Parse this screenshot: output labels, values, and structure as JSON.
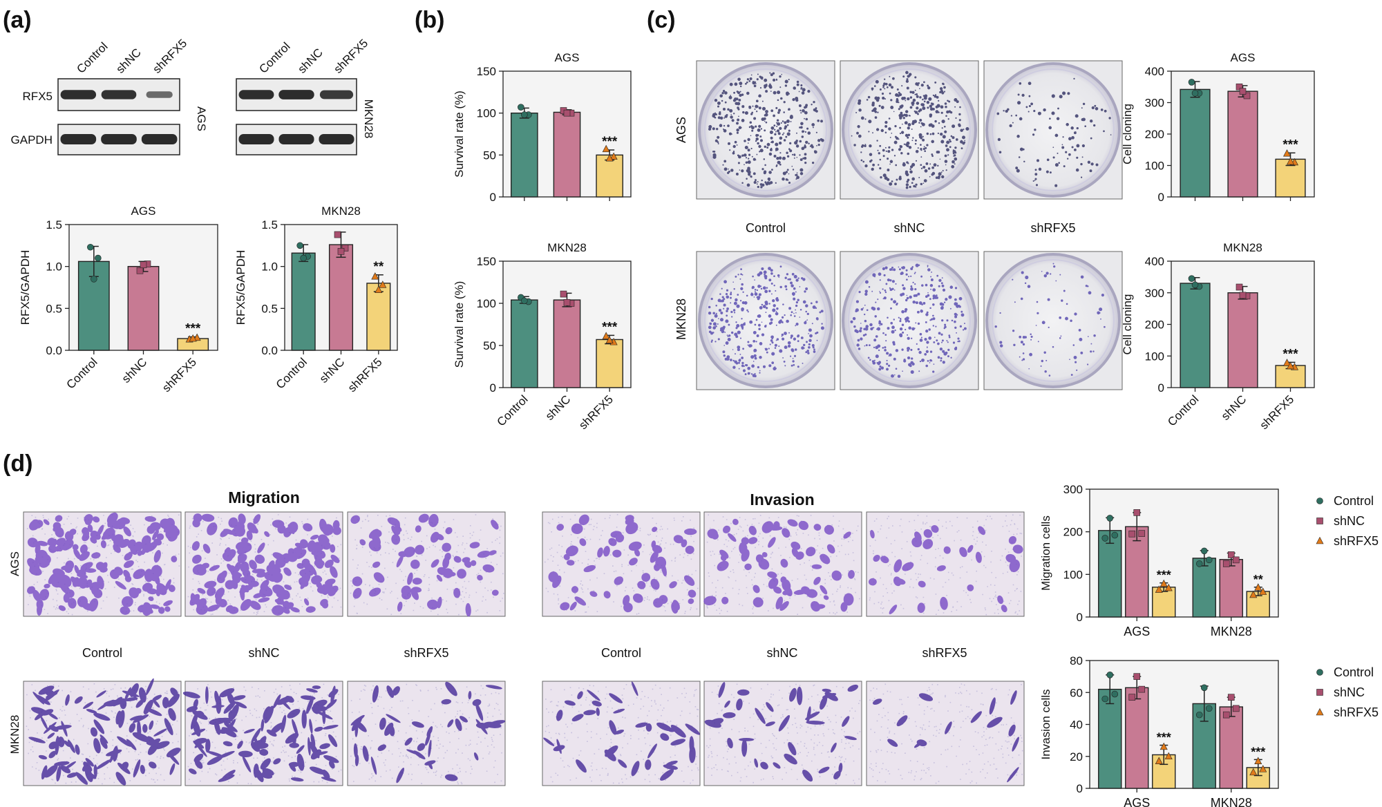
{
  "panel_labels": [
    "(a)",
    "(b)",
    "(c)",
    "(d)"
  ],
  "groups": [
    "Control",
    "shNC",
    "shRFX5"
  ],
  "colors": {
    "Control": "#4d8f7f",
    "shNC": "#c77a93",
    "shRFX5": "#f3d379"
  },
  "blot": {
    "lanes": [
      "Control",
      "shNC",
      "shRFX5"
    ],
    "rows": [
      "RFX5",
      "GAPDH"
    ],
    "cell_lines": [
      "AGS",
      "MKN28"
    ],
    "rfx5_intensity": {
      "AGS": [
        0.95,
        0.92,
        0.45
      ],
      "MKN28": [
        0.95,
        0.97,
        0.85
      ]
    }
  },
  "images": {
    "row_labels": [
      "AGS",
      "MKN28"
    ],
    "col_labels": [
      "Control",
      "shNC",
      "shRFX5"
    ],
    "transwell_titles": [
      "Migration",
      "Invasion"
    ],
    "colony_density": {
      "AGS": [
        1.0,
        0.95,
        0.25
      ],
      "MKN28": [
        0.9,
        0.85,
        0.2
      ]
    },
    "cell_density": {
      "Migration": {
        "AGS": [
          1.0,
          0.95,
          0.35
        ],
        "MKN28": [
          0.85,
          0.9,
          0.35
        ]
      },
      "Invasion": {
        "AGS": [
          0.45,
          0.5,
          0.25
        ],
        "MKN28": [
          0.3,
          0.3,
          0.12
        ]
      }
    }
  },
  "legend": {
    "entries": [
      "Control",
      "shNC",
      "shRFX5"
    ]
  },
  "chart_data": [
    {
      "id": "a_ags",
      "type": "bar",
      "title": "AGS",
      "ylabel": "RFX5/GAPDH",
      "categories": [
        "Control",
        "shNC",
        "shRFX5"
      ],
      "values": [
        1.06,
        1.0,
        0.14
      ],
      "errors": [
        0.18,
        0.06,
        0.02
      ],
      "ylim": [
        0,
        1.5
      ],
      "yticks": [
        "0.0",
        "0.5",
        "1.0",
        "1.5"
      ],
      "points": [
        [
          1.23,
          1.1,
          0.85
        ],
        [
          0.95,
          1.03,
          1.02
        ],
        [
          0.13,
          0.15,
          0.14
        ]
      ],
      "significance": [
        "",
        "",
        "***"
      ]
    },
    {
      "id": "a_mkn",
      "type": "bar",
      "title": "MKN28",
      "ylabel": "RFX5/GAPDH",
      "categories": [
        "Control",
        "shNC",
        "shRFX5"
      ],
      "values": [
        1.16,
        1.26,
        0.8
      ],
      "errors": [
        0.1,
        0.15,
        0.1
      ],
      "ylim": [
        0,
        1.5
      ],
      "yticks": [
        "0.0",
        "0.5",
        "1.0",
        "1.5"
      ],
      "points": [
        [
          1.25,
          1.12,
          1.1
        ],
        [
          1.38,
          1.22,
          1.18
        ],
        [
          0.88,
          0.78,
          0.72
        ]
      ],
      "significance": [
        "",
        "",
        "**"
      ]
    },
    {
      "id": "b_ags",
      "type": "bar",
      "title": "AGS",
      "ylabel": "Survival rate (%)",
      "categories": [
        "Control",
        "shNC",
        "shRFX5"
      ],
      "values": [
        100,
        101,
        50
      ],
      "errors": [
        6,
        3,
        6
      ],
      "ylim": [
        0,
        150
      ],
      "yticks": [
        "0",
        "50",
        "100",
        "150"
      ],
      "points": [
        [
          107,
          98,
          98
        ],
        [
          103,
          100,
          100
        ],
        [
          57,
          48,
          46
        ]
      ],
      "significance": [
        "",
        "",
        "***"
      ]
    },
    {
      "id": "b_mkn",
      "type": "bar",
      "title": "MKN28",
      "ylabel": "Survival rate (%)",
      "categories": [
        "Control",
        "shNC",
        "shRFX5"
      ],
      "values": [
        104,
        104,
        57
      ],
      "errors": [
        4,
        8,
        5
      ],
      "ylim": [
        0,
        150
      ],
      "yticks": [
        "0",
        "50",
        "100",
        "150"
      ],
      "points": [
        [
          107,
          102,
          103
        ],
        [
          111,
          100,
          101
        ],
        [
          61,
          54,
          56
        ]
      ],
      "significance": [
        "",
        "",
        "***"
      ]
    },
    {
      "id": "c_ags",
      "type": "bar",
      "title": "AGS",
      "ylabel": "Cell cloning",
      "categories": [
        "Control",
        "shNC",
        "shRFX5"
      ],
      "values": [
        342,
        336,
        120
      ],
      "errors": [
        25,
        18,
        20
      ],
      "ylim": [
        0,
        400
      ],
      "yticks": [
        "0",
        "100",
        "200",
        "300",
        "400"
      ],
      "points": [
        [
          365,
          330,
          330
        ],
        [
          350,
          322,
          336
        ],
        [
          138,
          110,
          112
        ]
      ],
      "significance": [
        "",
        "",
        "***"
      ]
    },
    {
      "id": "c_mkn",
      "type": "bar",
      "title": "MKN28",
      "ylabel": "Cell cloning",
      "categories": [
        "Control",
        "shNC",
        "shRFX5"
      ],
      "values": [
        330,
        300,
        70
      ],
      "errors": [
        18,
        20,
        10
      ],
      "ylim": [
        0,
        400
      ],
      "yticks": [
        "0",
        "100",
        "200",
        "300",
        "400"
      ],
      "points": [
        [
          345,
          320,
          325
        ],
        [
          318,
          290,
          292
        ],
        [
          78,
          65,
          68
        ]
      ],
      "significance": [
        "",
        "",
        "***"
      ]
    },
    {
      "id": "d_mig",
      "type": "bar",
      "ylabel": "Migration cells",
      "categories": [
        "AGS",
        "MKN28"
      ],
      "ylim": [
        0,
        300
      ],
      "yticks": [
        "0",
        "100",
        "200",
        "300"
      ],
      "series": [
        {
          "name": "Control",
          "values": [
            203,
            138
          ],
          "errors": [
            30,
            18
          ],
          "points": [
            [
              232,
              185,
              192
            ],
            [
              155,
              125,
              134
            ]
          ]
        },
        {
          "name": "shNC",
          "values": [
            212,
            135
          ],
          "errors": [
            33,
            15
          ],
          "points": [
            [
              245,
              195,
              196
            ],
            [
              146,
              125,
              134
            ]
          ]
        },
        {
          "name": "shRFX5",
          "values": [
            70,
            60
          ],
          "errors": [
            10,
            10
          ],
          "points": [
            [
              78,
              64,
              68
            ],
            [
              69,
              52,
              59
            ]
          ]
        }
      ],
      "significance": [
        [
          "",
          "",
          "***"
        ],
        [
          "",
          "",
          "**"
        ]
      ]
    },
    {
      "id": "d_inv",
      "type": "bar",
      "ylabel": "Invasion cells",
      "categories": [
        "AGS",
        "MKN28"
      ],
      "ylim": [
        0,
        80
      ],
      "yticks": [
        "0",
        "20",
        "40",
        "60",
        "80"
      ],
      "series": [
        {
          "name": "Control",
          "values": [
            62,
            53
          ],
          "errors": [
            9,
            11
          ],
          "points": [
            [
              71,
              56,
              59
            ],
            [
              63,
              46,
              50
            ]
          ]
        },
        {
          "name": "shNC",
          "values": [
            63,
            51
          ],
          "errors": [
            7,
            6
          ],
          "points": [
            [
              70,
              57,
              62
            ],
            [
              57,
              46,
              50
            ]
          ]
        },
        {
          "name": "shRFX5",
          "values": [
            21,
            13
          ],
          "errors": [
            6,
            5
          ],
          "points": [
            [
              26,
              17,
              20
            ],
            [
              17,
              10,
              12
            ]
          ]
        }
      ],
      "significance": [
        [
          "",
          "",
          "***"
        ],
        [
          "",
          "",
          "***"
        ]
      ]
    }
  ]
}
